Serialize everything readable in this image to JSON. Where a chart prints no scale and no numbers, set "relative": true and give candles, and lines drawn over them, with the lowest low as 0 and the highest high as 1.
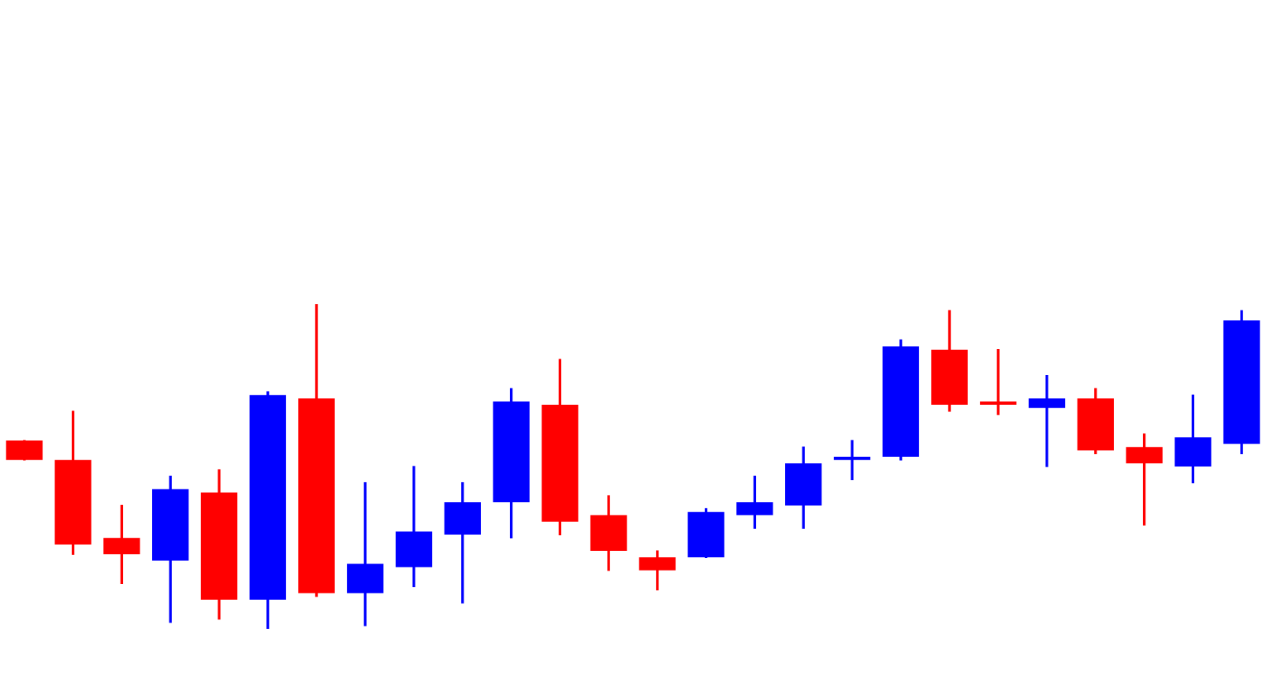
{
  "chart_data": {
    "type": "candlestick",
    "relative": true,
    "categories": [
      null,
      null,
      null,
      null,
      null,
      null,
      null,
      null,
      null,
      null,
      null,
      null,
      null,
      null,
      null,
      null,
      null,
      null,
      null,
      null,
      null,
      null,
      null,
      null,
      null,
      null
    ],
    "ohlc": [
      [
        0.58,
        0.58,
        0.52,
        0.52
      ],
      [
        0.52,
        0.67,
        0.23,
        0.26
      ],
      [
        0.28,
        0.38,
        0.14,
        0.23
      ],
      [
        0.21,
        0.47,
        0.02,
        0.43
      ],
      [
        0.42,
        0.49,
        0.03,
        0.09
      ],
      [
        0.09,
        0.73,
        0,
        0.72
      ],
      [
        0.71,
        1,
        0.1,
        0.11
      ],
      [
        0.11,
        0.45,
        0.01,
        0.2
      ],
      [
        0.19,
        0.5,
        0.13,
        0.3
      ],
      [
        0.29,
        0.45,
        0.08,
        0.39
      ],
      [
        0.39,
        0.74,
        0.28,
        0.7
      ],
      [
        0.69,
        0.83,
        0.29,
        0.33
      ],
      [
        0.35,
        0.41,
        0.18,
        0.24
      ],
      [
        0.22,
        0.24,
        0.12,
        0.18
      ],
      [
        0.22,
        0.37,
        0.22,
        0.36
      ],
      [
        0.35,
        0.47,
        0.31,
        0.39
      ],
      [
        0.38,
        0.56,
        0.31,
        0.51
      ],
      [
        0.52,
        0.58,
        0.46,
        0.53
      ],
      [
        0.53,
        0.89,
        0.52,
        0.87
      ],
      [
        0.86,
        0.98,
        0.67,
        0.69
      ],
      [
        0.7,
        0.86,
        0.66,
        0.69
      ],
      [
        0.68,
        0.78,
        0.5,
        0.71
      ],
      [
        0.71,
        0.74,
        0.54,
        0.55
      ],
      [
        0.56,
        0.6,
        0.32,
        0.51
      ],
      [
        0.5,
        0.72,
        0.45,
        0.59
      ],
      [
        0.57,
        0.98,
        0.54,
        0.95
      ]
    ],
    "colors": [
      "#ff0000",
      "#ff0000",
      "#ff0000",
      "#0000ff",
      "#ff0000",
      "#0000ff",
      "#ff0000",
      "#0000ff",
      "#0000ff",
      "#0000ff",
      "#0000ff",
      "#ff0000",
      "#ff0000",
      "#ff0000",
      "#0000ff",
      "#0000ff",
      "#0000ff",
      "#0000ff",
      "#0000ff",
      "#ff0000",
      "#ff0000",
      "#0000ff",
      "#ff0000",
      "#ff0000",
      "#0000ff",
      "#0000ff"
    ]
  }
}
